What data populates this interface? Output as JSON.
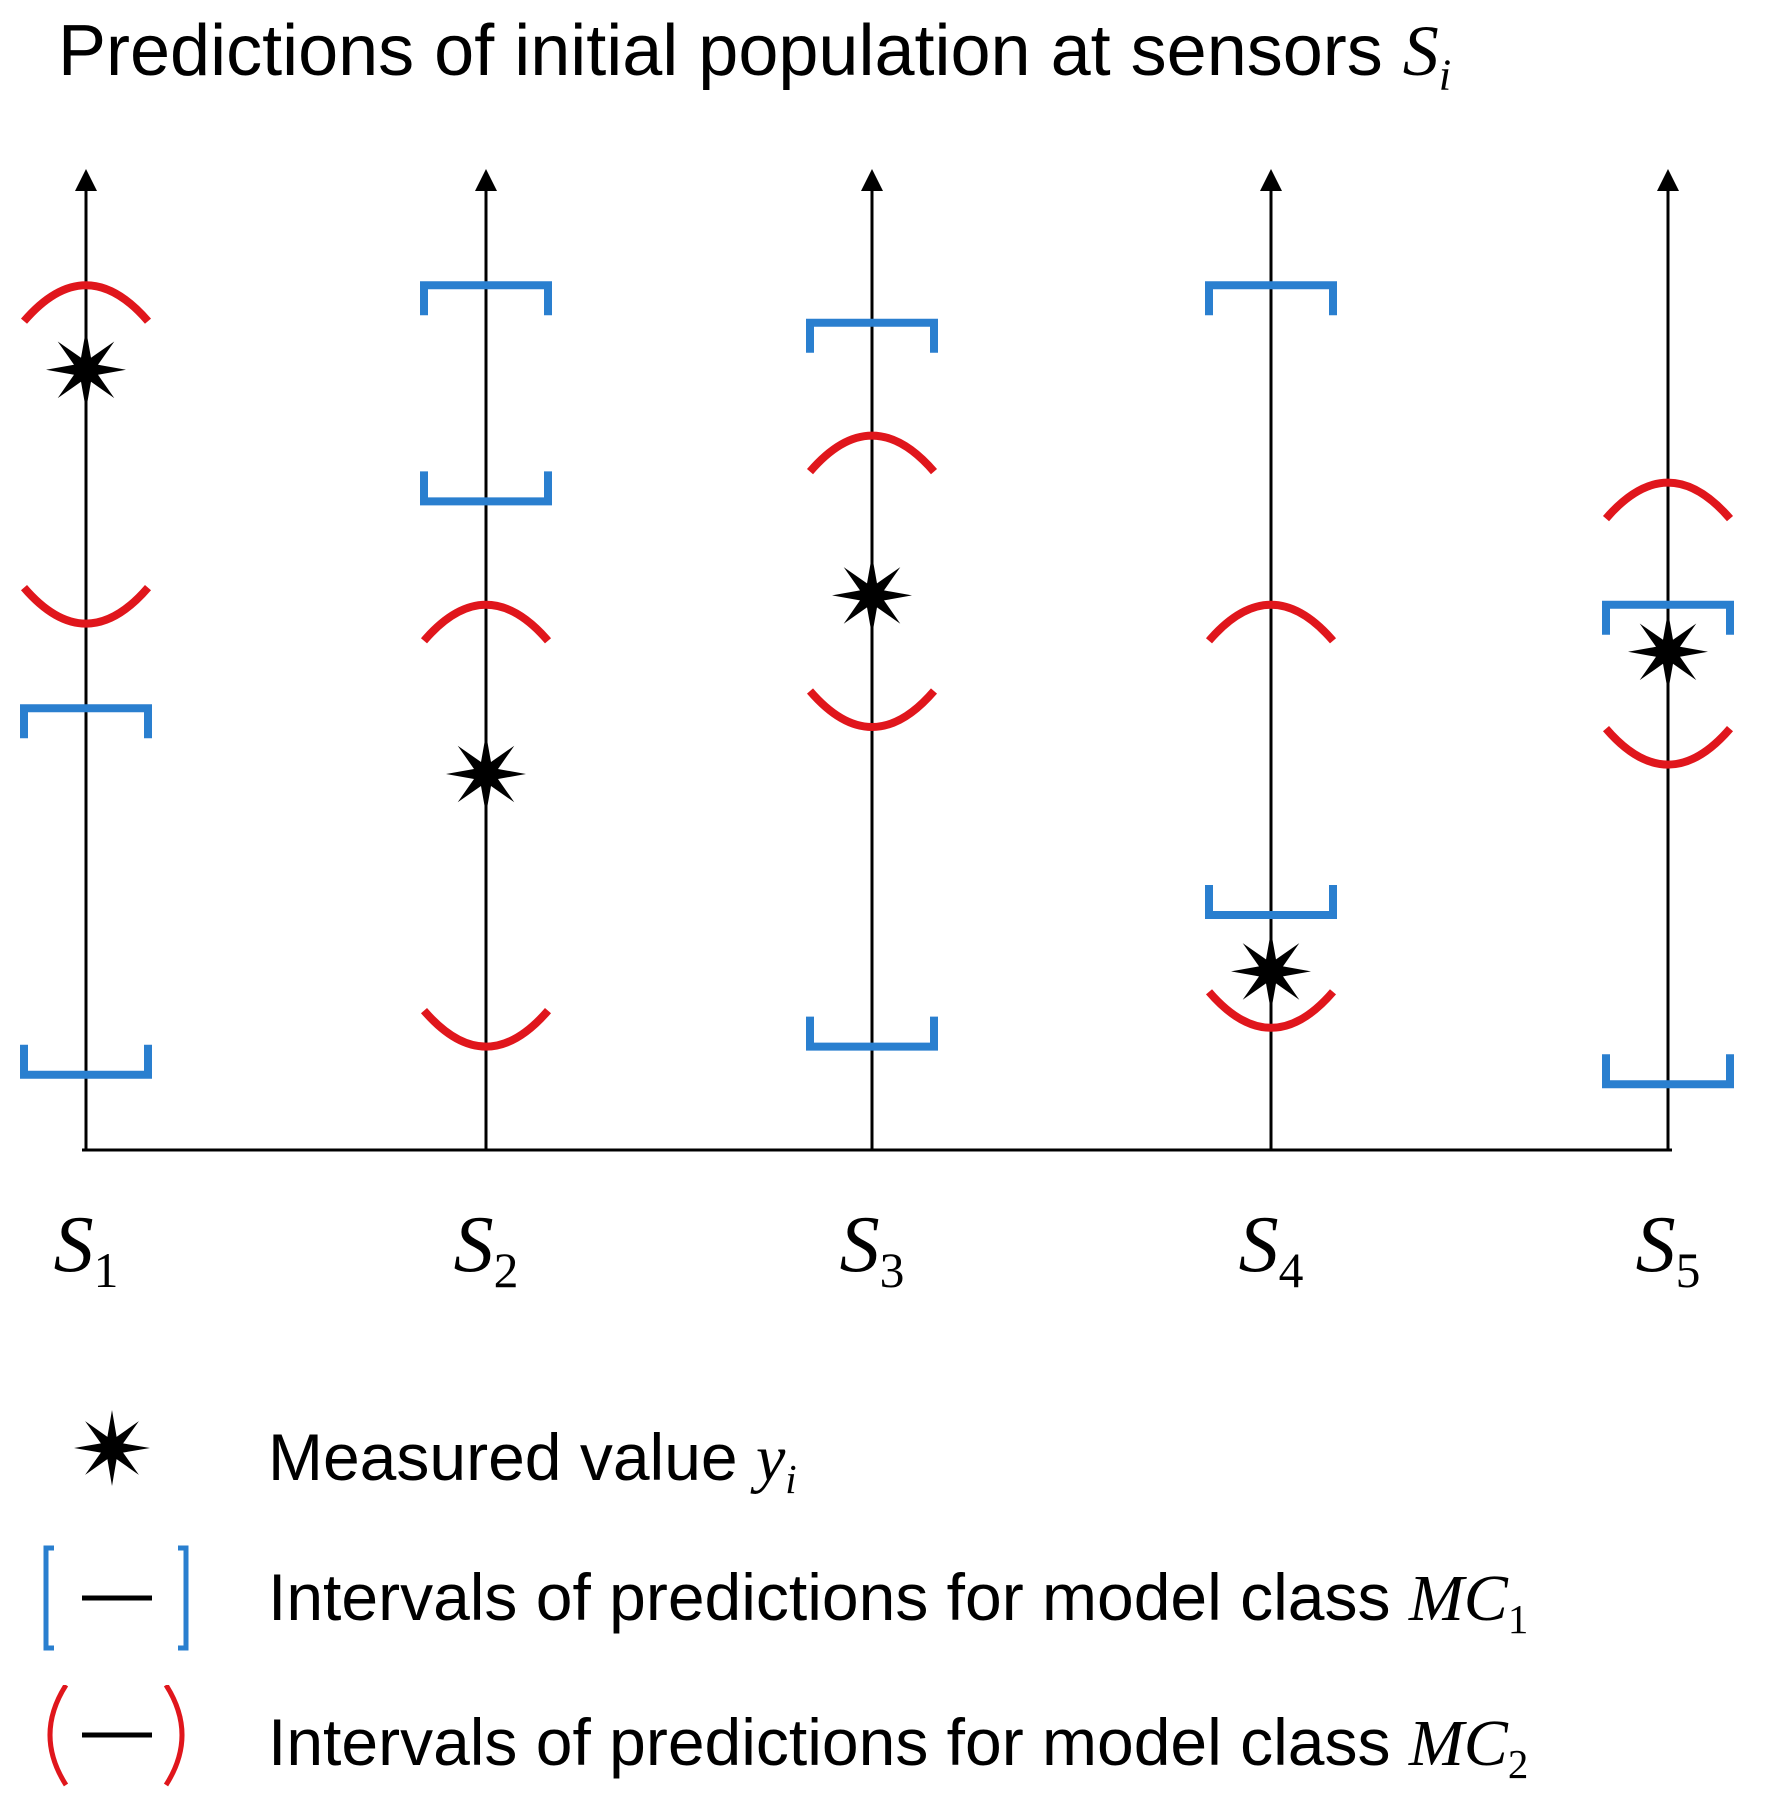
{
  "title": {
    "text": "Predictions of initial population at sensors",
    "symbol": "S",
    "subscript": "i"
  },
  "colors": {
    "axis": "#000000",
    "mc1": "#2a7fcf",
    "mc2": "#e0161c",
    "measured": "#000000"
  },
  "chart_data": {
    "type": "interval-diagram",
    "y_axis_ticks": "none",
    "sensors": [
      {
        "label": "S",
        "sub": "1",
        "mc1": [
          0.08,
          0.47
        ],
        "mc2": [
          0.56,
          0.92
        ],
        "measured": 0.83
      },
      {
        "label": "S",
        "sub": "2",
        "mc1": [
          0.69,
          0.92
        ],
        "mc2": [
          0.11,
          0.58
        ],
        "measured": 0.4
      },
      {
        "label": "S",
        "sub": "3",
        "mc1": [
          0.11,
          0.88
        ],
        "mc2": [
          0.45,
          0.76
        ],
        "measured": 0.59
      },
      {
        "label": "S",
        "sub": "4",
        "mc1": [
          0.25,
          0.92
        ],
        "mc2": [
          0.13,
          0.58
        ],
        "measured": 0.19
      },
      {
        "label": "S",
        "sub": "5",
        "mc1": [
          0.07,
          0.58
        ],
        "mc2": [
          0.41,
          0.71
        ],
        "measured": 0.53
      }
    ]
  },
  "legend": [
    {
      "glyph": "star-icon",
      "text": "Measured value",
      "symbol": "y",
      "sub": "i"
    },
    {
      "glyph": "bracket-icon",
      "text": "Intervals of predictions for model class",
      "symbol": "MC",
      "sub": "1"
    },
    {
      "glyph": "paren-icon",
      "text": "Intervals of predictions for model class",
      "symbol": "MC",
      "sub": "2"
    }
  ]
}
